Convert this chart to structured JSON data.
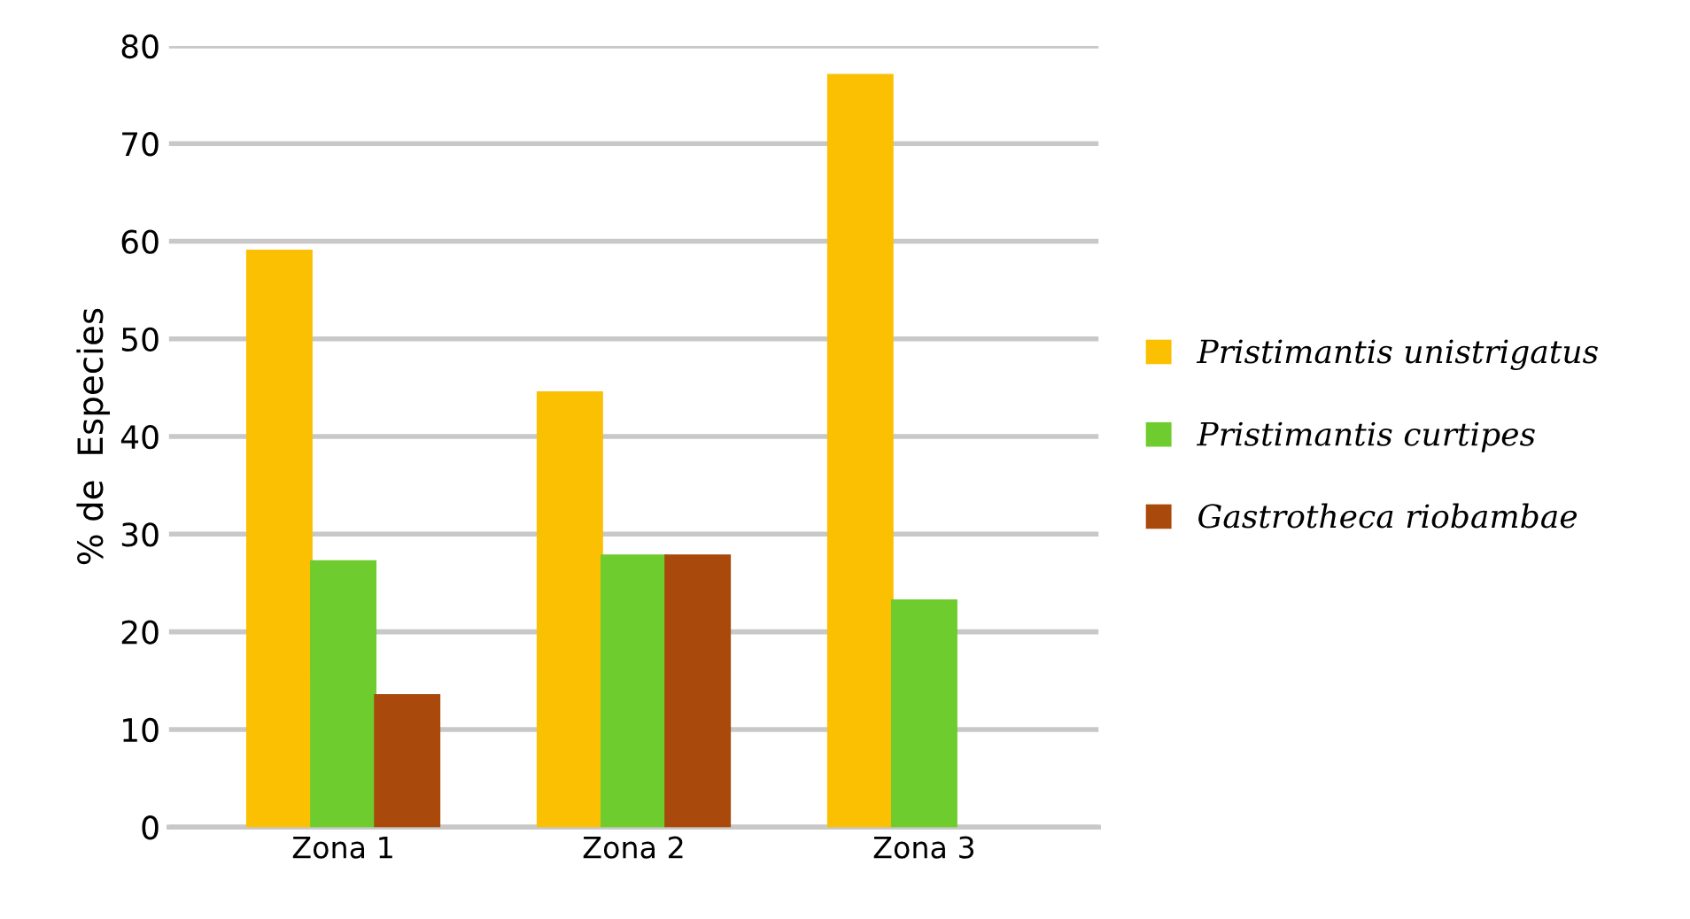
{
  "chart_data": {
    "type": "bar",
    "ylabel": "% de  Especies",
    "categories": [
      "Zona 1",
      "Zona 2",
      "Zona 3"
    ],
    "series": [
      {
        "name": "Pristimantis unistrigatus",
        "color": "#fbc002",
        "values": [
          59,
          44.5,
          77
        ]
      },
      {
        "name": "Pristimantis curtipes",
        "color": "#6fcc2e",
        "values": [
          27.2,
          27.8,
          23.2
        ]
      },
      {
        "name": "Gastrotheca riobambae",
        "color": "#a9490c",
        "values": [
          13.5,
          27.8,
          null
        ]
      }
    ],
    "ylim": [
      0,
      80
    ],
    "yticks": [
      0,
      10,
      20,
      30,
      40,
      50,
      60,
      70,
      80
    ],
    "grid": "y",
    "legend": "right"
  }
}
